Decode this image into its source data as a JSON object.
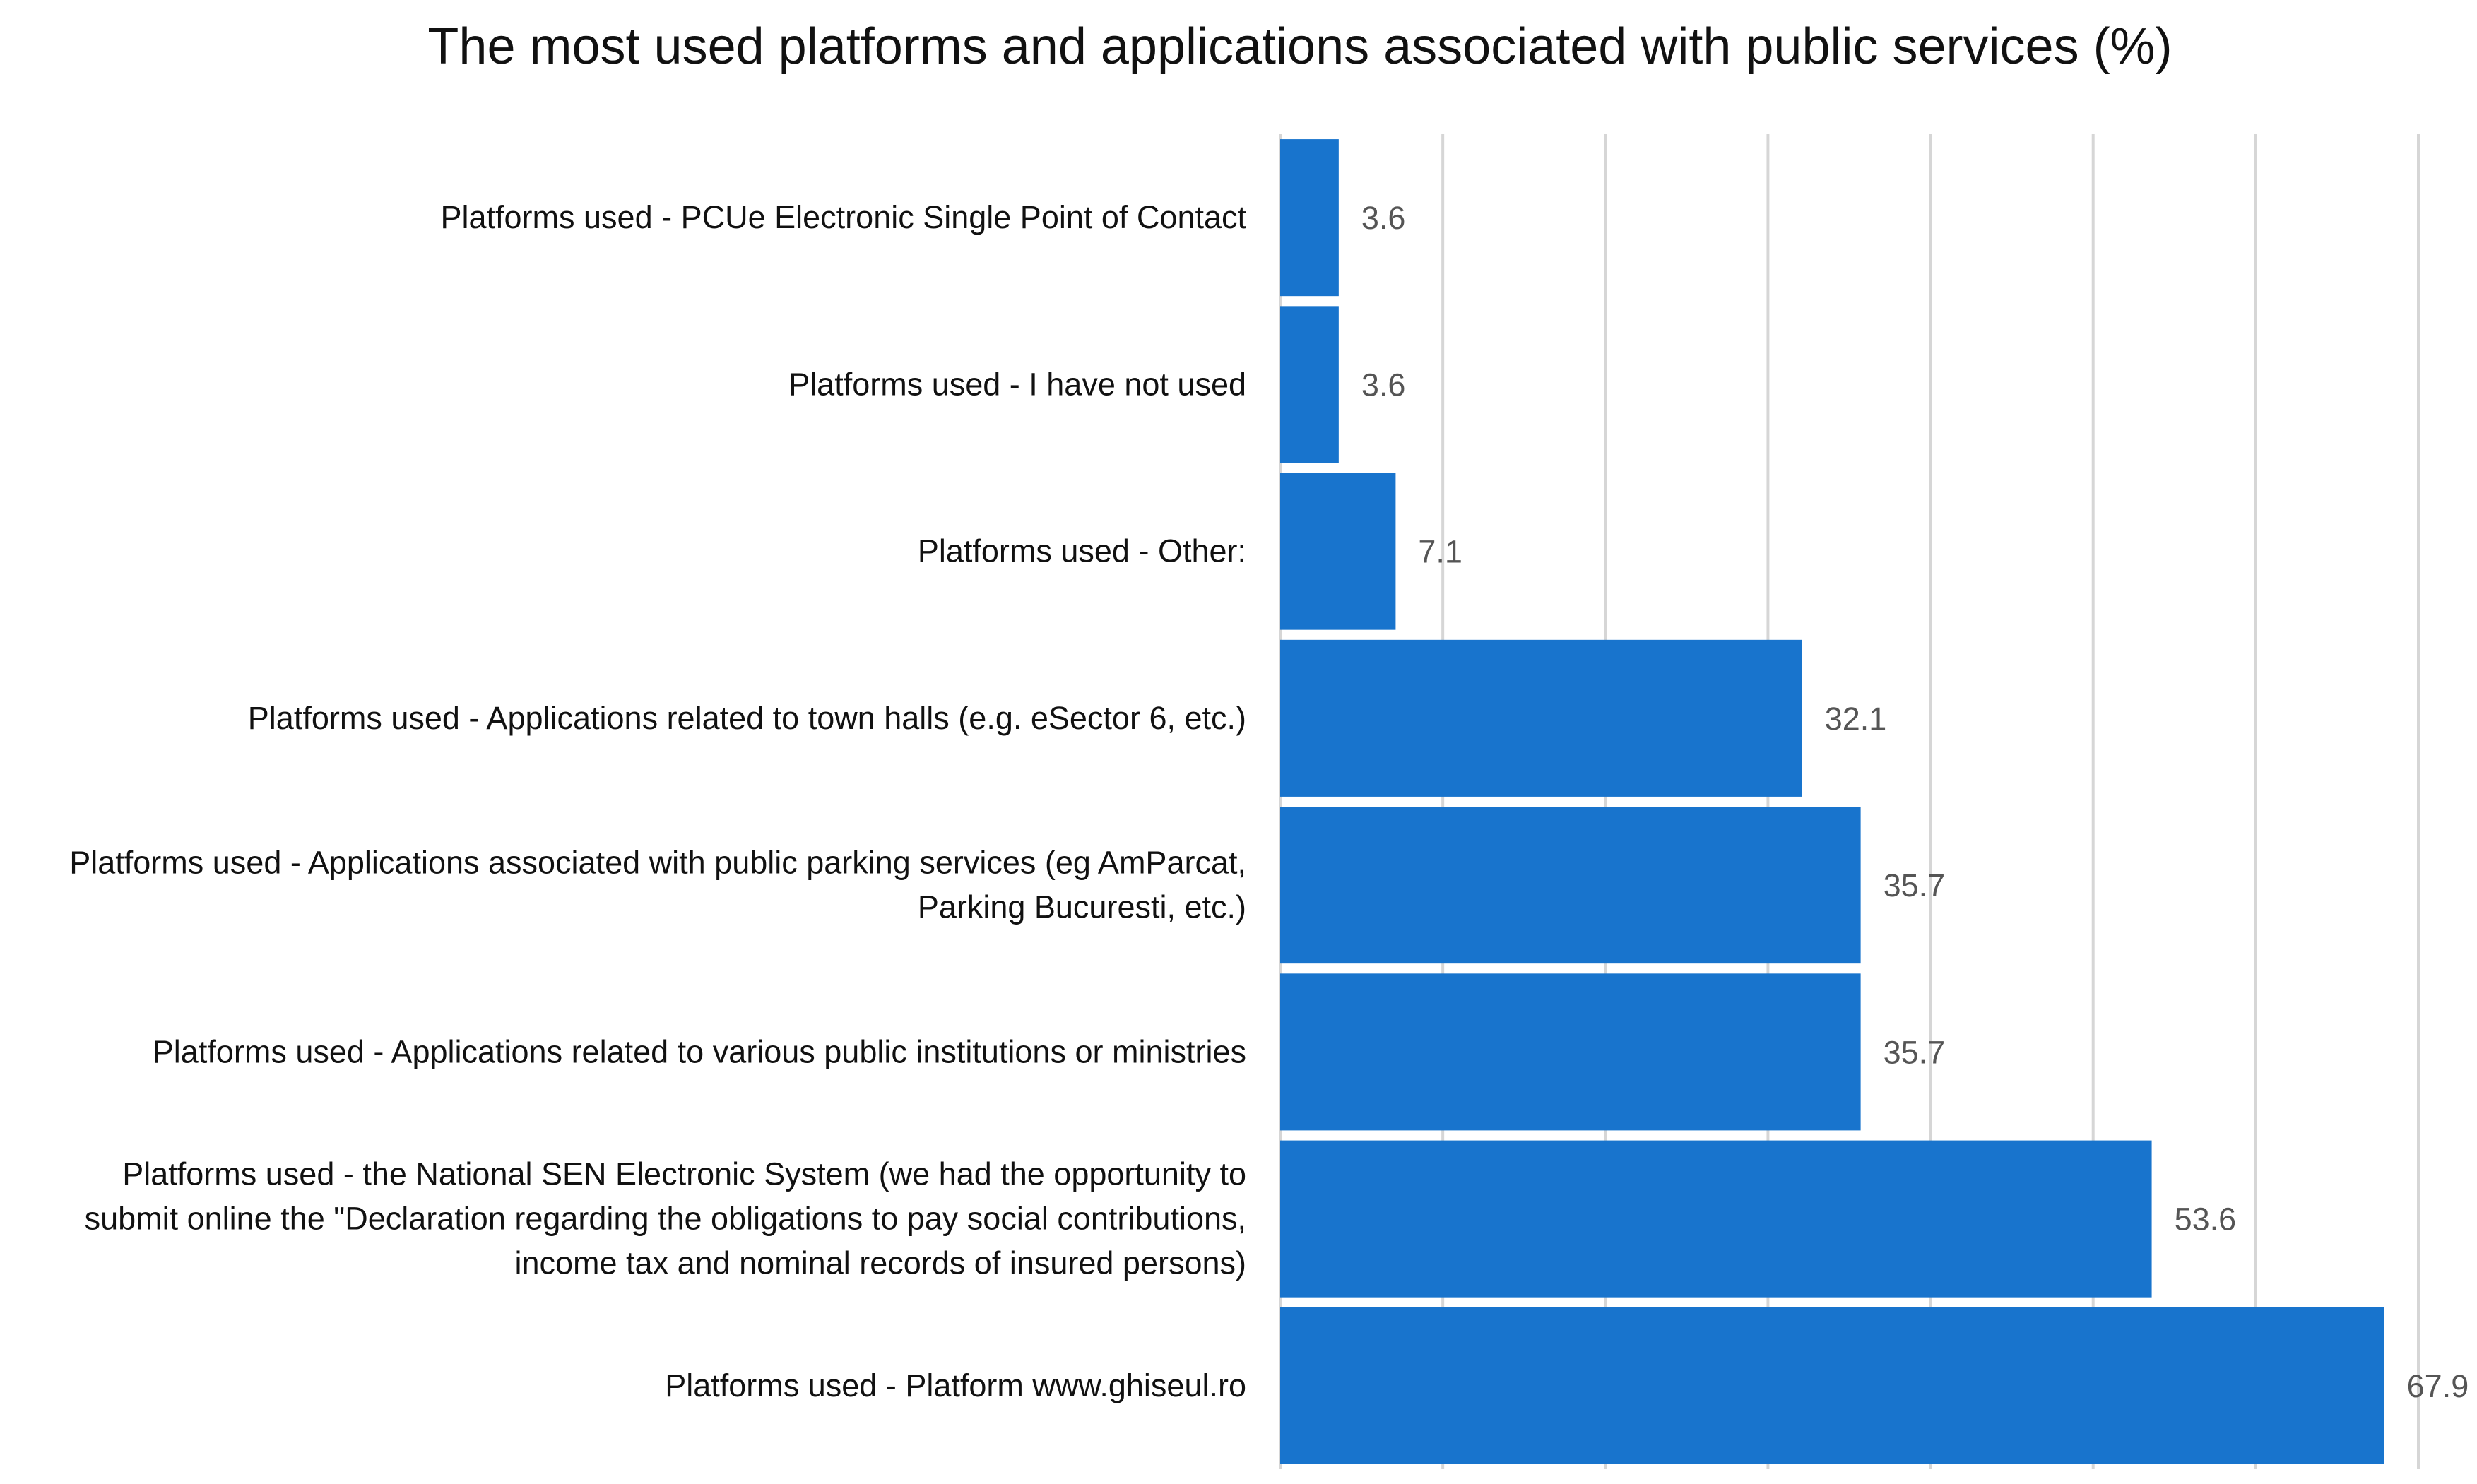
{
  "chart_data": {
    "type": "bar",
    "orientation": "horizontal",
    "title": "The most used platforms and applications associated with public services (%)",
    "xlabel": "",
    "ylabel": "",
    "xlim": [
      0,
      70
    ],
    "grid": true,
    "legend": "none",
    "bar_color": "#1874CD",
    "categories": [
      [
        "Platforms used - PCUe Electronic Single Point of Contact"
      ],
      [
        "Platforms used - I have not used"
      ],
      [
        "Platforms used - Other:"
      ],
      [
        "Platforms used - Applications related to town halls (e.g. eSector 6, etc.)"
      ],
      [
        "Platforms used - Applications associated with public parking services (eg AmParcat,",
        "Parking Bucuresti, etc.)"
      ],
      [
        "Platforms used - Applications related to various public institutions or ministries"
      ],
      [
        "Platforms used - the National SEN Electronic System (we had the opportunity to",
        "submit online the \"Declaration regarding the obligations to pay social contributions,",
        "income tax and nominal records of insured persons)"
      ],
      [
        "Platforms used - Platform www.ghiseul.ro"
      ]
    ],
    "values": [
      3.6,
      3.6,
      7.1,
      32.1,
      35.7,
      35.7,
      53.6,
      67.9
    ],
    "value_labels": [
      "3.6",
      "3.6",
      "7.1",
      "32.1",
      "35.7",
      "35.7",
      "53.6",
      "67.9"
    ]
  }
}
